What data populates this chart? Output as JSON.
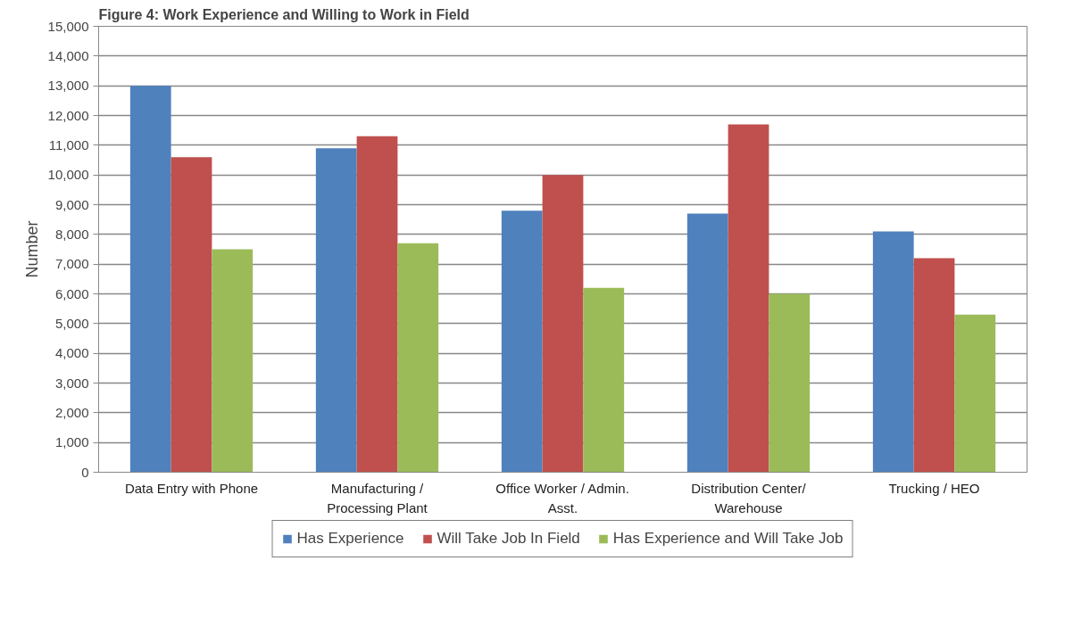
{
  "chart_data": {
    "type": "bar",
    "title": "Figure 4: Work Experience and Willing to Work in Field",
    "ylabel": "Number",
    "categories": [
      "Data Entry with Phone",
      "Manufacturing / Processing Plant",
      "Office Worker / Admin. Asst.",
      "Distribution Center/ Warehouse",
      "Trucking / HEO"
    ],
    "series": [
      {
        "name": "Has Experience",
        "color": "#4f81bd",
        "values": [
          13000,
          10900,
          8800,
          8700,
          8100
        ]
      },
      {
        "name": "Will Take Job In Field",
        "color": "#c0504d",
        "values": [
          10600,
          11300,
          10000,
          11700,
          7200
        ]
      },
      {
        "name": "Has Experience and Will Take Job",
        "color": "#9bbb59",
        "values": [
          7500,
          7700,
          6200,
          6000,
          5300
        ]
      }
    ],
    "ylim": [
      0,
      15000
    ],
    "yticks": [
      {
        "value": 0,
        "label": "0"
      },
      {
        "value": 1000,
        "label": "1,000"
      },
      {
        "value": 2000,
        "label": "2,000"
      },
      {
        "value": 3000,
        "label": "3,000"
      },
      {
        "value": 4000,
        "label": "4,000"
      },
      {
        "value": 5000,
        "label": "5,000"
      },
      {
        "value": 6000,
        "label": "6,000"
      },
      {
        "value": 7000,
        "label": "7,000"
      },
      {
        "value": 8000,
        "label": "8,000"
      },
      {
        "value": 9000,
        "label": "9,000"
      },
      {
        "value": 10000,
        "label": "10,000"
      },
      {
        "value": 11000,
        "label": "11,000"
      },
      {
        "value": 12000,
        "label": "12,000"
      },
      {
        "value": 13000,
        "label": "13,000"
      },
      {
        "value": 14000,
        "label": "14,000"
      },
      {
        "value": 15000,
        "label": "15,000"
      }
    ],
    "grid": "y",
    "legend": "bottom"
  }
}
